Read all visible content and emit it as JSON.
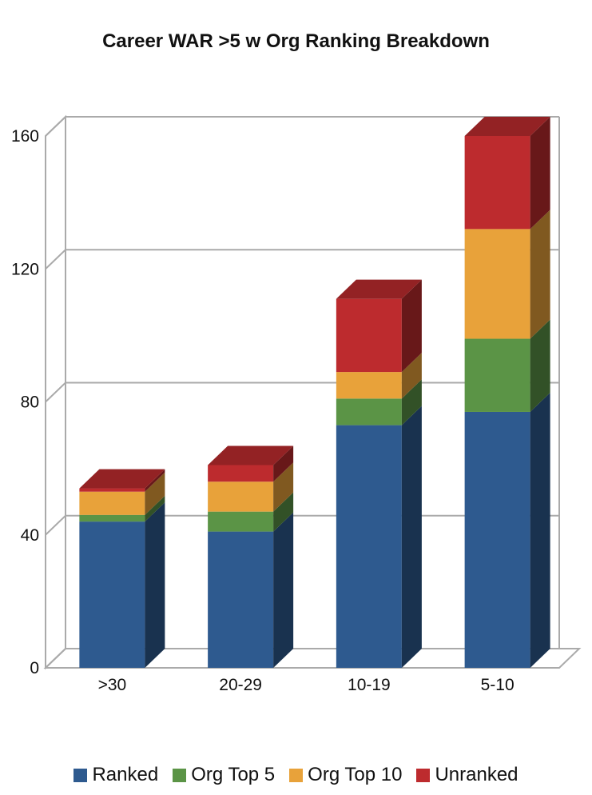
{
  "chart_data": {
    "type": "bar",
    "stacked": true,
    "three_d": true,
    "title": "Career WAR >5 w Org Ranking Breakdown",
    "xlabel": "",
    "ylabel": "",
    "categories": [
      ">30",
      "20-29",
      "10-19",
      "5-10"
    ],
    "ylim": [
      0,
      160
    ],
    "yticks": [
      0,
      40,
      80,
      120,
      160
    ],
    "grid": true,
    "legend_position": "bottom",
    "series": [
      {
        "name": "Ranked",
        "color": "#2e5a8f",
        "values": [
          44,
          41,
          73,
          77
        ]
      },
      {
        "name": "Org Top 5",
        "color": "#5b9446",
        "values": [
          2,
          6,
          8,
          22
        ]
      },
      {
        "name": "Org Top 10",
        "color": "#e8a23a",
        "values": [
          7,
          9,
          8,
          33
        ]
      },
      {
        "name": "Unranked",
        "color": "#bd2b2e",
        "values": [
          1,
          5,
          22,
          28
        ]
      }
    ]
  }
}
